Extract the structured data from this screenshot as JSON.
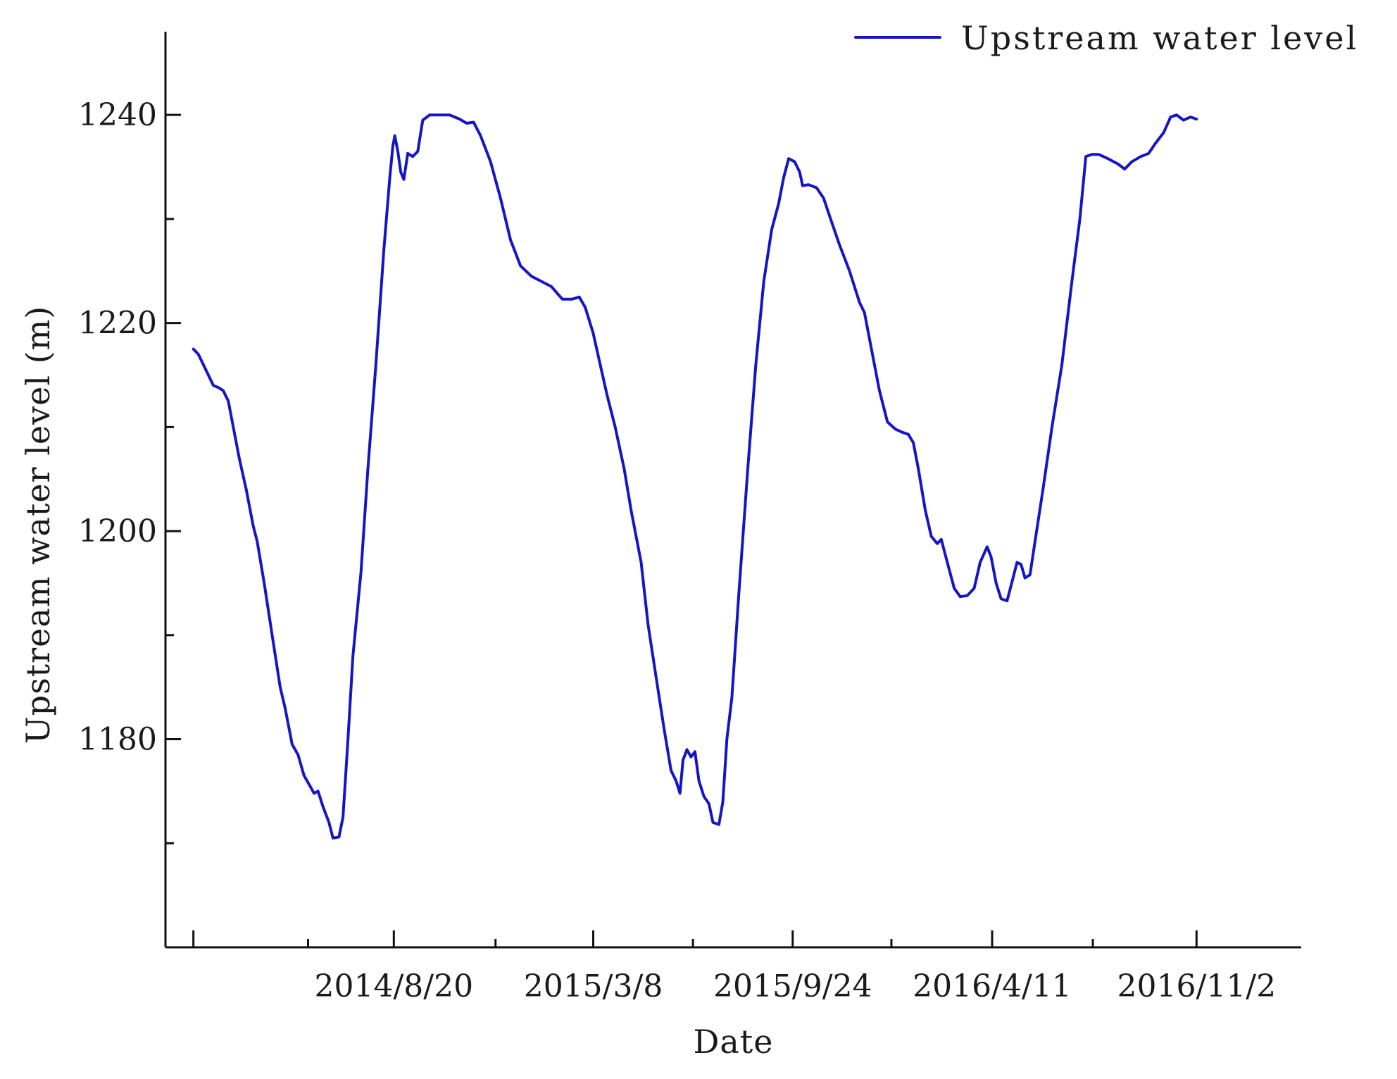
{
  "chart_data": {
    "type": "line",
    "title": "",
    "xlabel": "Date",
    "ylabel": "Upstream water level (m)",
    "x_axis": {
      "type": "date",
      "range": [
        "2014-01-03",
        "2017-02-15"
      ],
      "major_ticks": [
        {
          "value": "2014-01-31",
          "label": ""
        },
        {
          "value": "2014-08-20",
          "label": "2014/8/20"
        },
        {
          "value": "2015-03-08",
          "label": "2015/3/8"
        },
        {
          "value": "2015-09-24",
          "label": "2015/9/24"
        },
        {
          "value": "2016-04-11",
          "label": "2016/4/11"
        },
        {
          "value": "2016-11-02",
          "label": "2016/11/2"
        }
      ],
      "minor_ticks": [
        "2014-05-26",
        "2014-11-30",
        "2015-06-16",
        "2016-01-01",
        "2016-07-21"
      ]
    },
    "y_axis": {
      "range": [
        1160,
        1248
      ],
      "ticks": [
        1180,
        1200,
        1220,
        1240
      ],
      "minor_ticks": [
        1170,
        1190,
        1210,
        1230
      ]
    },
    "grid": false,
    "legend": {
      "position": "top-right"
    },
    "series": [
      {
        "name": "Upstream water level",
        "color": "#1515c8",
        "points": [
          [
            "2014-01-31",
            1217.5
          ],
          [
            "2014-02-05",
            1217.0
          ],
          [
            "2014-02-10",
            1216.0
          ],
          [
            "2014-02-15",
            1215.0
          ],
          [
            "2014-02-20",
            1214.0
          ],
          [
            "2014-02-25",
            1213.8
          ],
          [
            "2014-03-02",
            1213.5
          ],
          [
            "2014-03-07",
            1212.5
          ],
          [
            "2014-03-12",
            1210.0
          ],
          [
            "2014-03-18",
            1207.0
          ],
          [
            "2014-03-25",
            1204.0
          ],
          [
            "2014-04-01",
            1200.5
          ],
          [
            "2014-04-05",
            1199.0
          ],
          [
            "2014-04-12",
            1195.0
          ],
          [
            "2014-04-20",
            1190.0
          ],
          [
            "2014-04-28",
            1185.0
          ],
          [
            "2014-05-03",
            1183.0
          ],
          [
            "2014-05-10",
            1179.5
          ],
          [
            "2014-05-16",
            1178.5
          ],
          [
            "2014-05-22",
            1176.5
          ],
          [
            "2014-05-28",
            1175.5
          ],
          [
            "2014-06-01",
            1174.8
          ],
          [
            "2014-06-05",
            1175.0
          ],
          [
            "2014-06-10",
            1173.5
          ],
          [
            "2014-06-16",
            1172.0
          ],
          [
            "2014-06-20",
            1170.5
          ],
          [
            "2014-06-26",
            1170.6
          ],
          [
            "2014-06-30",
            1172.5
          ],
          [
            "2014-07-05",
            1180.0
          ],
          [
            "2014-07-10",
            1188.0
          ],
          [
            "2014-07-18",
            1196.0
          ],
          [
            "2014-07-25",
            1206.0
          ],
          [
            "2014-08-02",
            1216.0
          ],
          [
            "2014-08-10",
            1227.0
          ],
          [
            "2014-08-16",
            1234.0
          ],
          [
            "2014-08-19",
            1237.0
          ],
          [
            "2014-08-21",
            1238.0
          ],
          [
            "2014-08-24",
            1236.5
          ],
          [
            "2014-08-27",
            1234.5
          ],
          [
            "2014-08-30",
            1233.8
          ],
          [
            "2014-09-03",
            1236.3
          ],
          [
            "2014-09-08",
            1236.0
          ],
          [
            "2014-09-13",
            1236.5
          ],
          [
            "2014-09-18",
            1239.5
          ],
          [
            "2014-09-25",
            1240.0
          ],
          [
            "2014-10-05",
            1240.0
          ],
          [
            "2014-10-15",
            1240.0
          ],
          [
            "2014-10-25",
            1239.6
          ],
          [
            "2014-11-01",
            1239.2
          ],
          [
            "2014-11-08",
            1239.3
          ],
          [
            "2014-11-15",
            1238.0
          ],
          [
            "2014-11-25",
            1235.5
          ],
          [
            "2014-12-05",
            1232.0
          ],
          [
            "2014-12-15",
            1228.0
          ],
          [
            "2014-12-25",
            1225.5
          ],
          [
            "2015-01-05",
            1224.5
          ],
          [
            "2015-01-15",
            1224.0
          ],
          [
            "2015-01-25",
            1223.5
          ],
          [
            "2015-02-05",
            1222.3
          ],
          [
            "2015-02-15",
            1222.3
          ],
          [
            "2015-02-22",
            1222.5
          ],
          [
            "2015-02-28",
            1221.5
          ],
          [
            "2015-03-08",
            1219.0
          ],
          [
            "2015-03-15",
            1216.0
          ],
          [
            "2015-03-22",
            1213.0
          ],
          [
            "2015-03-30",
            1210.0
          ],
          [
            "2015-04-08",
            1206.0
          ],
          [
            "2015-04-15",
            1202.0
          ],
          [
            "2015-04-25",
            1197.0
          ],
          [
            "2015-05-02",
            1191.0
          ],
          [
            "2015-05-10",
            1186.0
          ],
          [
            "2015-05-18",
            1181.0
          ],
          [
            "2015-05-25",
            1177.0
          ],
          [
            "2015-05-30",
            1176.0
          ],
          [
            "2015-06-03",
            1174.8
          ],
          [
            "2015-06-06",
            1178.0
          ],
          [
            "2015-06-10",
            1179.0
          ],
          [
            "2015-06-14",
            1178.3
          ],
          [
            "2015-06-18",
            1178.8
          ],
          [
            "2015-06-22",
            1176.0
          ],
          [
            "2015-06-27",
            1174.5
          ],
          [
            "2015-07-02",
            1173.8
          ],
          [
            "2015-07-06",
            1172.0
          ],
          [
            "2015-07-12",
            1171.8
          ],
          [
            "2015-07-16",
            1174.0
          ],
          [
            "2015-07-20",
            1180.0
          ],
          [
            "2015-07-25",
            1184.0
          ],
          [
            "2015-08-01",
            1194.0
          ],
          [
            "2015-08-10",
            1206.0
          ],
          [
            "2015-08-18",
            1216.0
          ],
          [
            "2015-08-26",
            1224.0
          ],
          [
            "2015-09-03",
            1229.0
          ],
          [
            "2015-09-10",
            1231.5
          ],
          [
            "2015-09-15",
            1234.0
          ],
          [
            "2015-09-20",
            1235.8
          ],
          [
            "2015-09-26",
            1235.5
          ],
          [
            "2015-10-01",
            1234.5
          ],
          [
            "2015-10-04",
            1233.2
          ],
          [
            "2015-10-10",
            1233.3
          ],
          [
            "2015-10-18",
            1233.0
          ],
          [
            "2015-10-25",
            1232.0
          ],
          [
            "2015-11-01",
            1230.0
          ],
          [
            "2015-11-10",
            1227.5
          ],
          [
            "2015-11-20",
            1225.0
          ],
          [
            "2015-11-30",
            1222.0
          ],
          [
            "2015-12-05",
            1221.0
          ],
          [
            "2015-12-12",
            1217.5
          ],
          [
            "2015-12-20",
            1213.5
          ],
          [
            "2015-12-28",
            1210.5
          ],
          [
            "2016-01-05",
            1209.8
          ],
          [
            "2016-01-12",
            1209.5
          ],
          [
            "2016-01-18",
            1209.3
          ],
          [
            "2016-01-23",
            1208.5
          ],
          [
            "2016-01-28",
            1206.0
          ],
          [
            "2016-02-04",
            1202.0
          ],
          [
            "2016-02-10",
            1199.5
          ],
          [
            "2016-02-16",
            1198.8
          ],
          [
            "2016-02-20",
            1199.2
          ],
          [
            "2016-02-26",
            1197.0
          ],
          [
            "2016-03-04",
            1194.5
          ],
          [
            "2016-03-10",
            1193.7
          ],
          [
            "2016-03-17",
            1193.8
          ],
          [
            "2016-03-24",
            1194.5
          ],
          [
            "2016-03-30",
            1197.0
          ],
          [
            "2016-04-06",
            1198.5
          ],
          [
            "2016-04-10",
            1197.5
          ],
          [
            "2016-04-15",
            1195.0
          ],
          [
            "2016-04-20",
            1193.5
          ],
          [
            "2016-04-26",
            1193.3
          ],
          [
            "2016-05-02",
            1195.5
          ],
          [
            "2016-05-06",
            1197.0
          ],
          [
            "2016-05-10",
            1196.8
          ],
          [
            "2016-05-14",
            1195.5
          ],
          [
            "2016-05-19",
            1195.8
          ],
          [
            "2016-05-24",
            1199.0
          ],
          [
            "2016-06-01",
            1204.0
          ],
          [
            "2016-06-10",
            1210.0
          ],
          [
            "2016-06-20",
            1216.0
          ],
          [
            "2016-06-30",
            1224.0
          ],
          [
            "2016-07-08",
            1230.0
          ],
          [
            "2016-07-14",
            1236.0
          ],
          [
            "2016-07-20",
            1236.2
          ],
          [
            "2016-07-27",
            1236.2
          ],
          [
            "2016-08-05",
            1235.8
          ],
          [
            "2016-08-15",
            1235.3
          ],
          [
            "2016-08-22",
            1234.8
          ],
          [
            "2016-08-29",
            1235.5
          ],
          [
            "2016-09-07",
            1236.0
          ],
          [
            "2016-09-15",
            1236.3
          ],
          [
            "2016-09-22",
            1237.3
          ],
          [
            "2016-09-30",
            1238.3
          ],
          [
            "2016-10-07",
            1239.8
          ],
          [
            "2016-10-13",
            1240.0
          ],
          [
            "2016-10-20",
            1239.5
          ],
          [
            "2016-10-27",
            1239.8
          ],
          [
            "2016-11-02",
            1239.6
          ]
        ]
      }
    ]
  }
}
